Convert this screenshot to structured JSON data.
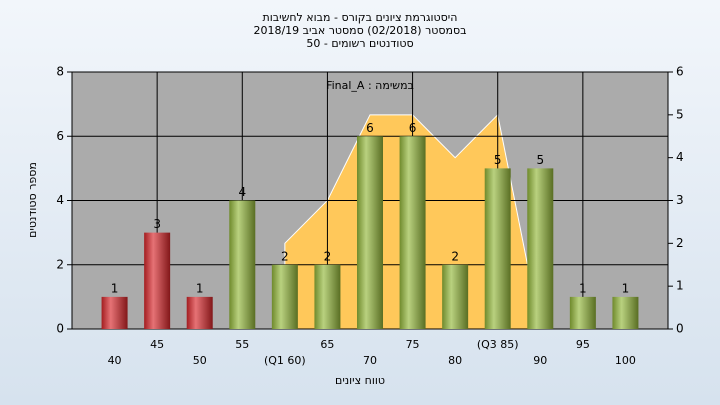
{
  "chart_data": {
    "type": "bar",
    "title": [
      "היסטוגרמת ציונים בקורס - מבוא לחשיבות",
      "בסמסטר (02/2018) סמסטר אביב 2018/19",
      "סטודנטים רשומים - 50"
    ],
    "annotation": "במשימה : Final_A",
    "ylabel": "מספר סטודנטים",
    "xlabel": "טווח ציונים",
    "categories": [
      "40",
      "45",
      "50",
      "55",
      "(Q1 60)",
      "65",
      "70",
      "75",
      "80",
      "(Q3 85)",
      "90",
      "95",
      "100"
    ],
    "values": [
      1,
      3,
      1,
      4,
      2,
      2,
      6,
      6,
      2,
      5,
      5,
      1,
      1
    ],
    "bar_colors": [
      "#d9262a",
      "#d9262a",
      "#d9262a",
      "#94b83a",
      "#94b83a",
      "#94b83a",
      "#94b83a",
      "#94b83a",
      "#94b83a",
      "#94b83a",
      "#94b83a",
      "#94b83a",
      "#94b83a"
    ],
    "area": {
      "color": "#ffc85a",
      "axis": "y2",
      "values": [
        null,
        null,
        null,
        null,
        2,
        3,
        5,
        5,
        4,
        5,
        0,
        null,
        null
      ]
    },
    "ylim": [
      0,
      8
    ],
    "yticks": [
      0,
      2,
      4,
      6,
      8
    ],
    "y2lim": [
      0,
      6
    ],
    "y2ticks": [
      0,
      1,
      2,
      3,
      4,
      5,
      6
    ],
    "grid": true
  }
}
